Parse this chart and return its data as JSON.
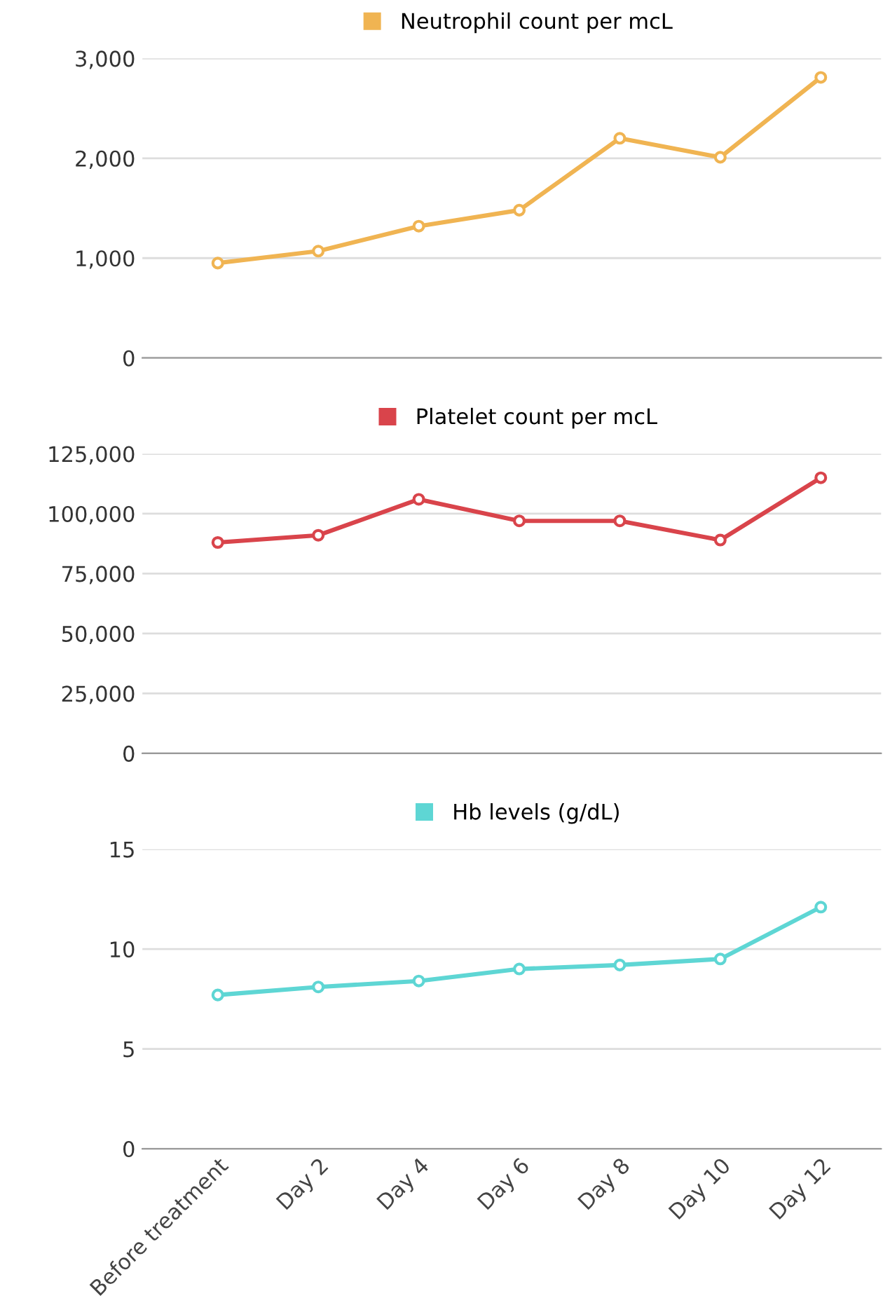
{
  "chart_data": [
    {
      "type": "line",
      "categories": [
        null,
        null,
        null,
        null,
        null,
        null,
        null
      ],
      "series": [
        {
          "name": "Neutrophil count per mcL",
          "color": "#f0b452",
          "values": [
            950,
            1070,
            1320,
            1480,
            2200,
            2010,
            2810
          ]
        }
      ],
      "ylim": [
        0,
        3000
      ],
      "yticks": [
        {
          "value": 0,
          "label": "0"
        },
        {
          "value": 1000,
          "label": "1,000"
        },
        {
          "value": 2000,
          "label": "2,000"
        },
        {
          "value": 3000,
          "label": "3,000"
        }
      ],
      "grid": "y",
      "legend": "top",
      "marker": "circle",
      "line_style": "solid",
      "tick_labels": "y"
    },
    {
      "type": "line",
      "categories": [
        null,
        null,
        null,
        null,
        null,
        null,
        null
      ],
      "series": [
        {
          "name": "Platelet count per mcL",
          "color": "#d9444b",
          "values": [
            88000,
            91000,
            106000,
            97000,
            97000,
            89000,
            115000
          ]
        }
      ],
      "ylim": [
        0,
        125000
      ],
      "yticks": [
        {
          "value": 0,
          "label": "0"
        },
        {
          "value": 25000,
          "label": "25,000"
        },
        {
          "value": 50000,
          "label": "50,000"
        },
        {
          "value": 75000,
          "label": "75,000"
        },
        {
          "value": 100000,
          "label": "100,000"
        },
        {
          "value": 125000,
          "label": "125,000"
        }
      ],
      "grid": "y",
      "legend": "top",
      "marker": "circle",
      "line_style": "solid",
      "tick_labels": "y"
    },
    {
      "type": "line",
      "categories": [
        "Before treatment",
        "Day 2",
        "Day 4",
        "Day 6",
        "Day 8",
        "Day 10",
        "Day 12"
      ],
      "series": [
        {
          "name": "Hb levels (g/dL)",
          "color": "#5ed6d4",
          "values": [
            7.7,
            8.1,
            8.4,
            9.0,
            9.2,
            9.5,
            12.1
          ]
        }
      ],
      "ylim": [
        0,
        15
      ],
      "yticks": [
        0,
        5,
        10,
        15
      ],
      "grid": "y",
      "legend": "top",
      "marker": "circle",
      "line_style": "solid"
    }
  ]
}
